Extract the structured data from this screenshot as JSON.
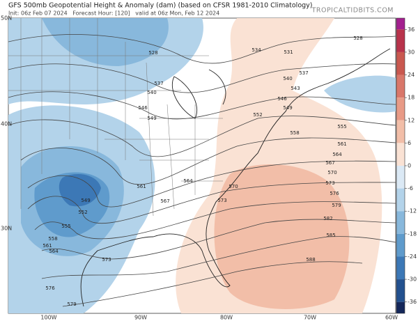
{
  "map": {
    "title": "GFS 500mb Geopotential Height & Anomaly (dam) (based on CFSR 1981-2010 Climatology)",
    "subtitle": "Init: 06z Feb 07 2024   Forecast Hour: [120]   valid at 06z Mon, Feb 12 2024",
    "credit": "TROPICALTIDBITS.COM",
    "lat_labels": [
      "50N",
      "40N",
      "30N"
    ],
    "lon_labels": [
      "100W",
      "90W",
      "80W",
      "70W",
      "60W"
    ],
    "colorbar": {
      "ticks": [
        36,
        30,
        24,
        18,
        12,
        6,
        0,
        -6,
        -12,
        -18,
        -24,
        -30,
        -36
      ],
      "lim": [
        -39,
        39
      ],
      "colors": [
        "#a3208f",
        "#b8334b",
        "#c9584f",
        "#d9776a",
        "#e89a86",
        "#f2bea8",
        "#fae2d4",
        "#dbe9f5",
        "#b3d3ea",
        "#88b8dc",
        "#5f9bcc",
        "#3c78b6",
        "#23518f",
        "#14275a"
      ]
    },
    "contour_labels": [
      "528",
      "534",
      "528",
      "531",
      "537",
      "540",
      "543",
      "546",
      "549",
      "552",
      "555",
      "558",
      "561",
      "564",
      "567",
      "570",
      "573",
      "576",
      "579",
      "582",
      "585",
      "588",
      "537",
      "540",
      "546",
      "549",
      "561",
      "564",
      "567",
      "570",
      "573",
      "549",
      "552",
      "555",
      "558",
      "561",
      "564",
      "573",
      "576",
      "579"
    ]
  }
}
